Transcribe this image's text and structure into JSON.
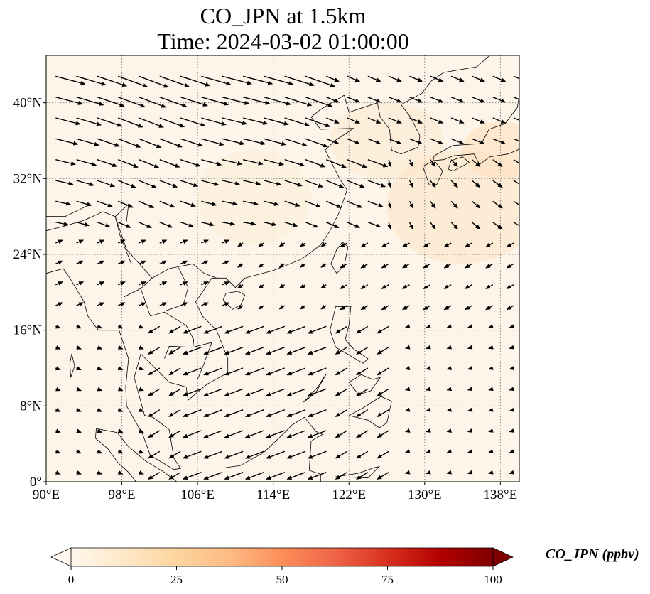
{
  "title": {
    "line1": "CO_JPN at 1.5km",
    "line2": "Time: 2024-03-02 01:00:00"
  },
  "map": {
    "projection": "PlateCarree",
    "lon_range": [
      90,
      140
    ],
    "lat_range": [
      0,
      45
    ],
    "gridlines": "dotted gray",
    "background_color": "#fdf5e9",
    "coastline_color": "#000000",
    "lon_ticks": [
      {
        "value": 90,
        "label": "90°E"
      },
      {
        "value": 98,
        "label": "98°E"
      },
      {
        "value": 106,
        "label": "106°E"
      },
      {
        "value": 114,
        "label": "114°E"
      },
      {
        "value": 122,
        "label": "122°E"
      },
      {
        "value": 130,
        "label": "130°E"
      },
      {
        "value": 138,
        "label": "138°E"
      }
    ],
    "lat_ticks": [
      {
        "value": 0,
        "label": "0°"
      },
      {
        "value": 8,
        "label": "8°N"
      },
      {
        "value": 16,
        "label": "16°N"
      },
      {
        "value": 24,
        "label": "24°N"
      },
      {
        "value": 32,
        "label": "32°N"
      },
      {
        "value": 40,
        "label": "40°N"
      }
    ],
    "wind_vectors": {
      "note_units": "degrees of arrow length at data scale",
      "grid_step_deg": 2,
      "arrow_color": "#000000"
    }
  },
  "colorbar": {
    "label": "CO_JPN (ppbv)",
    "colormap": "OrRd",
    "extend": "both",
    "min": 0,
    "max": 100,
    "ticks": [
      "0",
      "25",
      "50",
      "75",
      "100"
    ],
    "tick_values": [
      0,
      25,
      50,
      75,
      100
    ],
    "colors": [
      "#fff7ec",
      "#fee8c8",
      "#fdd49e",
      "#fdbb84",
      "#fc8d59",
      "#ef6548",
      "#d7301f",
      "#b30000",
      "#7f0000"
    ]
  }
}
